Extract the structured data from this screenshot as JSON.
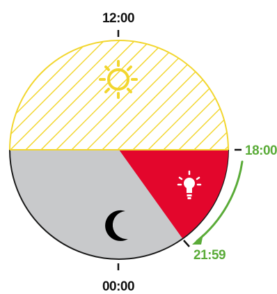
{
  "labels": {
    "noon": "12:00",
    "midnight": "00:00",
    "evening": "18:00",
    "late": "21:59"
  },
  "icons": {
    "day": "sun-icon",
    "night": "moon-icon",
    "light": "light-bulb-icon",
    "arrow": "curved-arrow-icon"
  },
  "colors": {
    "day_fill": "#ffffff",
    "day_stroke": "#f2d62e",
    "night_fill": "#c8c9cb",
    "night_stroke": "#1a1a1a",
    "light_fill": "#e3062c",
    "accent_green": "#5aab38",
    "text": "#111111"
  }
}
